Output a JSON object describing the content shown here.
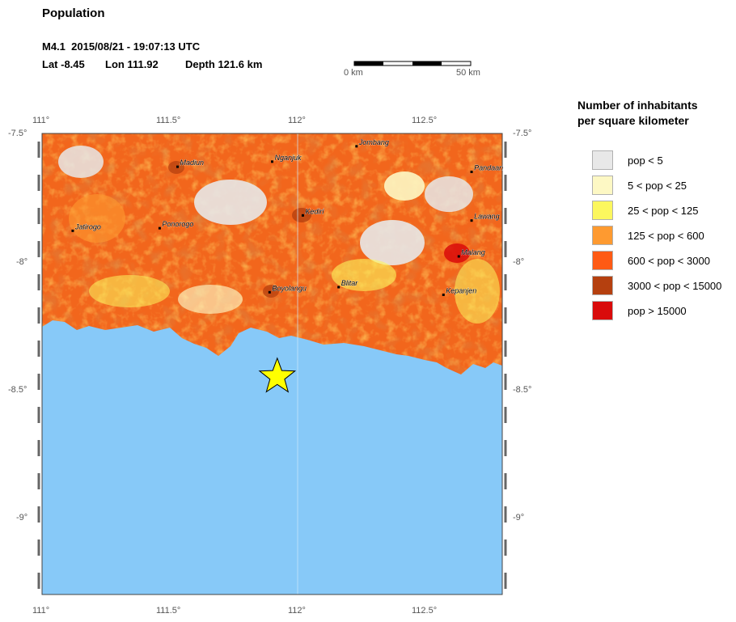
{
  "title": "Population",
  "event": {
    "line1": "M4.1  2015/08/21 - 19:07:13 UTC",
    "lat": "Lat -8.45",
    "lon": "Lon 111.92",
    "depth": "Depth 121.6 km"
  },
  "scale_bar": {
    "left_label": "0 km",
    "right_label": "50 km"
  },
  "axes": {
    "lon_ticks": [
      "111°",
      "111.5°",
      "112°",
      "112.5°"
    ],
    "lat_ticks": [
      "-7.5°",
      "-8°",
      "-8.5°",
      "-9°"
    ]
  },
  "map_data": {
    "lon_range": [
      111.0,
      112.8
    ],
    "lat_range": [
      -9.3,
      -7.5
    ],
    "epicenter": {
      "lon": 111.92,
      "lat": -8.45
    },
    "cities": [
      {
        "name": "Madiun",
        "lon": 111.53,
        "lat": -7.63
      },
      {
        "name": "Nganjuk",
        "lon": 111.9,
        "lat": -7.61
      },
      {
        "name": "Jombang",
        "lon": 112.23,
        "lat": -7.55
      },
      {
        "name": "Pandaan",
        "lon": 112.68,
        "lat": -7.65
      },
      {
        "name": "Lawang",
        "lon": 112.68,
        "lat": -7.84
      },
      {
        "name": "Jatirogo",
        "lon": 111.12,
        "lat": -7.88
      },
      {
        "name": "Ponorogo",
        "lon": 111.46,
        "lat": -7.87
      },
      {
        "name": "Kediri",
        "lon": 112.02,
        "lat": -7.82
      },
      {
        "name": "Malang",
        "lon": 112.63,
        "lat": -7.98
      },
      {
        "name": "Boyolangu",
        "lon": 111.89,
        "lat": -8.12
      },
      {
        "name": "Blitar",
        "lon": 112.16,
        "lat": -8.1
      },
      {
        "name": "Kepanjen",
        "lon": 112.57,
        "lat": -8.13
      }
    ]
  },
  "legend": {
    "title_line1": "Number of inhabitants",
    "title_line2": "per square kilometer",
    "items": [
      {
        "label": "pop < 5",
        "color": "#e8e8e8"
      },
      {
        "label": "5 < pop < 25",
        "color": "#fdf8c4"
      },
      {
        "label": "25 < pop < 125",
        "color": "#fcf75e"
      },
      {
        "label": "125 < pop < 600",
        "color": "#fe9a30"
      },
      {
        "label": "600 < pop < 3000",
        "color": "#fe5a14"
      },
      {
        "label": "3000 < pop < 15000",
        "color": "#b5400f"
      },
      {
        "label": "pop > 15000",
        "color": "#d90b0b"
      }
    ]
  },
  "colors": {
    "ocean": "#87c9f8",
    "land_base": "#f2661c",
    "epicenter": "#ffff00"
  }
}
